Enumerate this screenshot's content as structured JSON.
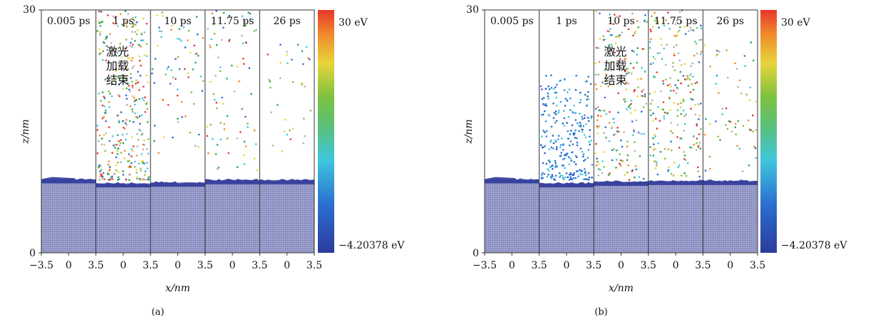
{
  "chart_data": [
    {
      "type": "heatmap",
      "panel_label": "(a)",
      "xlabel": "x/nm",
      "ylabel": "z/nm",
      "ylim": [
        0,
        30
      ],
      "y_ticks": [
        "0",
        "30"
      ],
      "x_tick_labels": [
        "−3.5",
        "0",
        "3.5",
        "0",
        "3.5",
        "0",
        "3.5",
        "0",
        "3.5",
        "0",
        "3.5"
      ],
      "time_labels": [
        "0.005 ps",
        "1 ps",
        "10 ps",
        "11.75 ps",
        "26 ps"
      ],
      "annotation": {
        "text_lines": [
          "激光",
          "加载",
          "结束"
        ],
        "snapshot_index": 1
      },
      "surface_height_nm": [
        9.1,
        8.6,
        8.7,
        9.0,
        9.0
      ],
      "ejecta": [
        {
          "snapshot": 0,
          "zmin": 0,
          "zmax": 0,
          "count": 0,
          "cool": false
        },
        {
          "snapshot": 1,
          "zmin": 9,
          "zmax": 30,
          "count": 340,
          "cool": false
        },
        {
          "snapshot": 2,
          "zmin": 12,
          "zmax": 30,
          "count": 70,
          "cool": false
        },
        {
          "snapshot": 3,
          "zmin": 10,
          "zmax": 30,
          "count": 80,
          "cool": false
        },
        {
          "snapshot": 4,
          "zmin": 12,
          "zmax": 26,
          "count": 35,
          "cool": false
        }
      ],
      "colorbar": {
        "max_label": "30 eV",
        "min_label": "−4.20378 eV",
        "range_ev": [
          -4.20378,
          30
        ],
        "colormap": "jet"
      }
    },
    {
      "type": "heatmap",
      "panel_label": "(b)",
      "xlabel": "x/nm",
      "ylabel": "z/nm",
      "ylim": [
        0,
        30
      ],
      "y_ticks": [
        "0",
        "30"
      ],
      "x_tick_labels": [
        "−3.5",
        "0",
        "3.5",
        "0",
        "3.5",
        "0",
        "3.5",
        "0",
        "3.5",
        "0",
        "3.5"
      ],
      "time_labels": [
        "0.005 ps",
        "1 ps",
        "10 ps",
        "11.75 ps",
        "26 ps"
      ],
      "annotation": {
        "text_lines": [
          "激光",
          "加载",
          "结束"
        ],
        "snapshot_index": 2
      },
      "surface_height_nm": [
        9.1,
        8.6,
        8.8,
        8.9,
        8.9
      ],
      "ejecta": [
        {
          "snapshot": 0,
          "zmin": 0,
          "zmax": 0,
          "count": 0,
          "cool": false
        },
        {
          "snapshot": 1,
          "zmin": 9,
          "zmax": 22,
          "count": 260,
          "cool": true
        },
        {
          "snapshot": 2,
          "zmin": 9,
          "zmax": 30,
          "count": 200,
          "cool": false
        },
        {
          "snapshot": 3,
          "zmin": 9,
          "zmax": 30,
          "count": 220,
          "cool": false
        },
        {
          "snapshot": 4,
          "zmin": 10,
          "zmax": 26,
          "count": 60,
          "cool": false
        }
      ],
      "colorbar": {
        "max_label": "30 eV",
        "min_label": "−4.20378 eV",
        "range_ev": [
          -4.20378,
          30
        ],
        "colormap": "jet"
      }
    }
  ]
}
